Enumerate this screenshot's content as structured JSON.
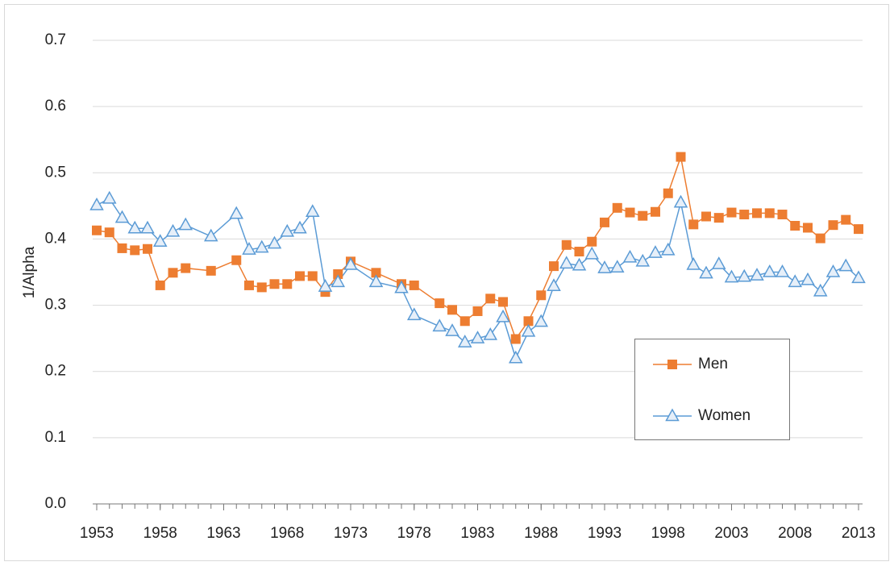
{
  "chart_data": {
    "type": "line",
    "y_label": "1/Alpha",
    "x": [
      1953,
      1954,
      1955,
      1956,
      1957,
      1958,
      1959,
      1960,
      1962,
      1964,
      1965,
      1966,
      1967,
      1968,
      1969,
      1970,
      1971,
      1972,
      1973,
      1975,
      1977,
      1978,
      1980,
      1981,
      1982,
      1983,
      1984,
      1985,
      1986,
      1987,
      1988,
      1989,
      1990,
      1991,
      1992,
      1993,
      1994,
      1995,
      1996,
      1997,
      1998,
      1999,
      2000,
      2001,
      2002,
      2003,
      2004,
      2005,
      2006,
      2007,
      2008,
      2009,
      2010,
      2011,
      2012,
      2013
    ],
    "series": [
      {
        "name": "Men",
        "color": "#ed7d31",
        "marker": "square",
        "values": [
          0.413,
          0.41,
          0.386,
          0.383,
          0.385,
          0.33,
          0.349,
          0.356,
          0.352,
          0.368,
          0.33,
          0.327,
          0.332,
          0.332,
          0.344,
          0.344,
          0.32,
          0.347,
          0.366,
          0.349,
          0.332,
          0.33,
          0.303,
          0.293,
          0.276,
          0.291,
          0.31,
          0.305,
          0.249,
          0.276,
          0.315,
          0.359,
          0.391,
          0.381,
          0.396,
          0.425,
          0.447,
          0.44,
          0.435,
          0.441,
          0.469,
          0.524,
          0.422,
          0.434,
          0.432,
          0.44,
          0.437,
          0.439,
          0.439,
          0.437,
          0.42,
          0.417,
          0.401,
          0.421,
          0.429,
          0.415
        ]
      },
      {
        "name": "Women",
        "color": "#5b9bd5",
        "marker": "triangle",
        "values": [
          0.451,
          0.461,
          0.432,
          0.416,
          0.416,
          0.396,
          0.411,
          0.421,
          0.404,
          0.438,
          0.384,
          0.387,
          0.393,
          0.411,
          0.416,
          0.441,
          0.328,
          0.335,
          0.361,
          0.335,
          0.326,
          0.285,
          0.268,
          0.261,
          0.244,
          0.25,
          0.255,
          0.282,
          0.22,
          0.26,
          0.275,
          0.329,
          0.363,
          0.36,
          0.377,
          0.356,
          0.357,
          0.372,
          0.366,
          0.379,
          0.383,
          0.455,
          0.361,
          0.348,
          0.362,
          0.342,
          0.343,
          0.345,
          0.35,
          0.35,
          0.335,
          0.338,
          0.321,
          0.35,
          0.359,
          0.341
        ]
      }
    ],
    "xlim": [
      1953,
      2013
    ],
    "xticks": [
      1953,
      1958,
      1963,
      1968,
      1973,
      1978,
      1983,
      1988,
      1993,
      1998,
      2003,
      2008,
      2013
    ],
    "ylim": [
      0,
      0.7
    ],
    "yticks": [
      {
        "value": 0,
        "label": "0.0"
      },
      0.1,
      0.2,
      0.3,
      0.4,
      0.5,
      0.6,
      0.7
    ],
    "grid": true,
    "legend": "lower-right"
  }
}
